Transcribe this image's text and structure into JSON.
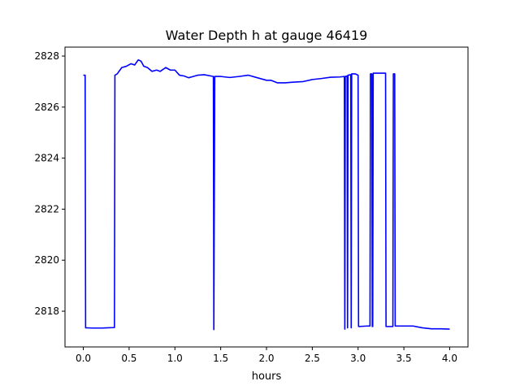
{
  "chart_data": {
    "type": "line",
    "title": "Water Depth h at gauge 46419",
    "xlabel": "hours",
    "ylabel": "",
    "xlim": [
      -0.2,
      4.2
    ],
    "ylim": [
      2816.6,
      2828.35
    ],
    "xticks": [
      0.0,
      0.5,
      1.0,
      1.5,
      2.0,
      2.5,
      3.0,
      3.5,
      4.0
    ],
    "xtick_labels": [
      "0.0",
      "0.5",
      "1.0",
      "1.5",
      "2.0",
      "2.5",
      "3.0",
      "3.5",
      "4.0"
    ],
    "yticks": [
      2818,
      2820,
      2822,
      2824,
      2826,
      2828
    ],
    "ytick_labels": [
      "2818",
      "2820",
      "2822",
      "2824",
      "2826",
      "2828"
    ],
    "grid": false,
    "series": [
      {
        "color": "#0000ff",
        "points": [
          [
            0.0,
            2827.25
          ],
          [
            0.02,
            2827.25
          ],
          [
            0.025,
            2817.35
          ],
          [
            0.1,
            2817.34
          ],
          [
            0.2,
            2817.34
          ],
          [
            0.34,
            2817.36
          ],
          [
            0.345,
            2827.25
          ],
          [
            0.37,
            2827.3
          ],
          [
            0.42,
            2827.55
          ],
          [
            0.47,
            2827.6
          ],
          [
            0.52,
            2827.7
          ],
          [
            0.56,
            2827.65
          ],
          [
            0.6,
            2827.85
          ],
          [
            0.63,
            2827.8
          ],
          [
            0.66,
            2827.6
          ],
          [
            0.7,
            2827.55
          ],
          [
            0.75,
            2827.4
          ],
          [
            0.8,
            2827.45
          ],
          [
            0.84,
            2827.4
          ],
          [
            0.9,
            2827.55
          ],
          [
            0.95,
            2827.45
          ],
          [
            1.0,
            2827.45
          ],
          [
            1.05,
            2827.25
          ],
          [
            1.1,
            2827.22
          ],
          [
            1.15,
            2827.15
          ],
          [
            1.2,
            2827.2
          ],
          [
            1.25,
            2827.25
          ],
          [
            1.32,
            2827.27
          ],
          [
            1.42,
            2827.2
          ],
          [
            1.425,
            2817.28
          ],
          [
            1.435,
            2827.2
          ],
          [
            1.5,
            2827.2
          ],
          [
            1.6,
            2827.16
          ],
          [
            1.7,
            2827.2
          ],
          [
            1.8,
            2827.25
          ],
          [
            1.9,
            2827.15
          ],
          [
            2.0,
            2827.05
          ],
          [
            2.05,
            2827.05
          ],
          [
            2.12,
            2826.95
          ],
          [
            2.2,
            2826.95
          ],
          [
            2.3,
            2826.98
          ],
          [
            2.4,
            2827.0
          ],
          [
            2.5,
            2827.08
          ],
          [
            2.6,
            2827.12
          ],
          [
            2.7,
            2827.17
          ],
          [
            2.8,
            2827.18
          ],
          [
            2.85,
            2827.2
          ],
          [
            2.855,
            2817.3
          ],
          [
            2.86,
            2827.2
          ],
          [
            2.88,
            2827.22
          ],
          [
            2.885,
            2817.35
          ],
          [
            2.89,
            2827.25
          ],
          [
            2.92,
            2827.27
          ],
          [
            2.925,
            2817.35
          ],
          [
            2.93,
            2827.3
          ],
          [
            2.97,
            2827.3
          ],
          [
            3.0,
            2827.25
          ],
          [
            3.005,
            2817.4
          ],
          [
            3.1,
            2817.42
          ],
          [
            3.13,
            2817.42
          ],
          [
            3.135,
            2827.3
          ],
          [
            3.15,
            2827.3
          ],
          [
            3.155,
            2817.4
          ],
          [
            3.16,
            2817.4
          ],
          [
            3.165,
            2827.33
          ],
          [
            3.3,
            2827.33
          ],
          [
            3.305,
            2817.4
          ],
          [
            3.38,
            2817.4
          ],
          [
            3.385,
            2827.3
          ],
          [
            3.4,
            2827.3
          ],
          [
            3.405,
            2817.42
          ],
          [
            3.5,
            2817.42
          ],
          [
            3.6,
            2817.42
          ],
          [
            3.7,
            2817.35
          ],
          [
            3.8,
            2817.31
          ],
          [
            3.9,
            2817.31
          ],
          [
            4.0,
            2817.3
          ]
        ]
      }
    ]
  }
}
